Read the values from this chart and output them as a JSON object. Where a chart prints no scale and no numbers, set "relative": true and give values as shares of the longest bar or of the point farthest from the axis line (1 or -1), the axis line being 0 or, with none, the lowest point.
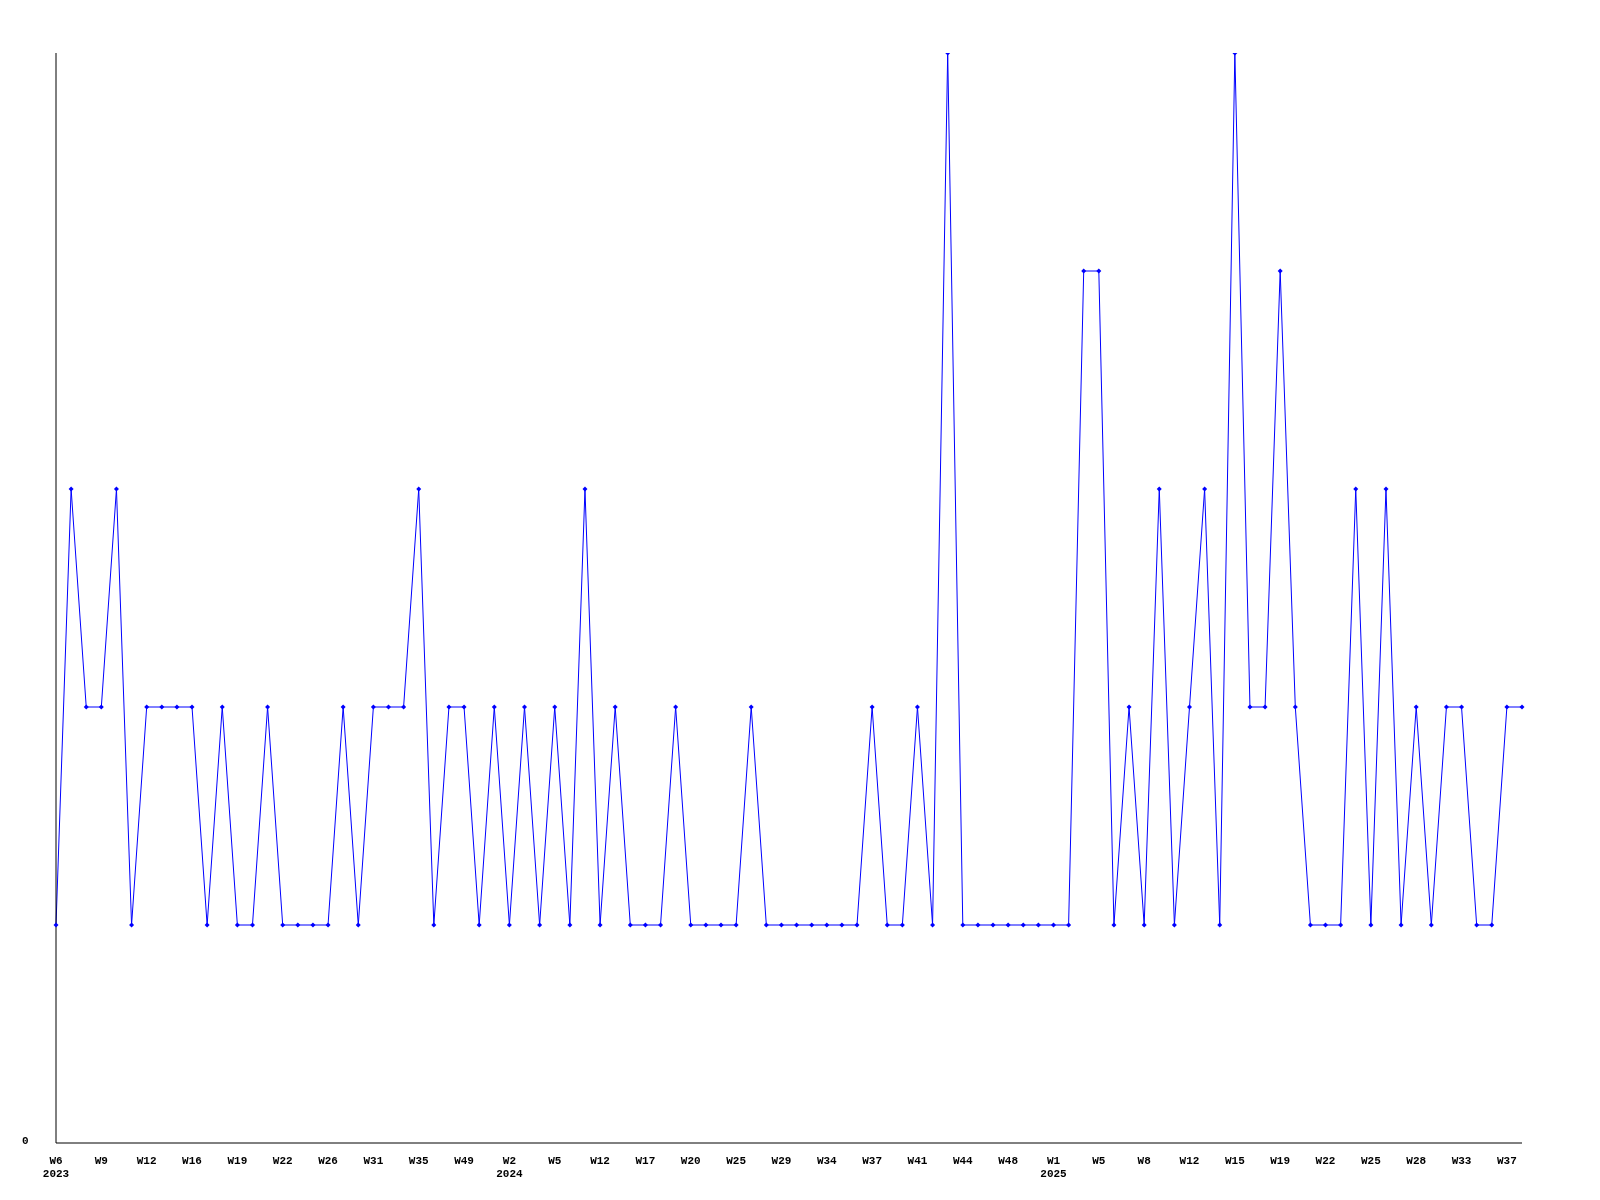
{
  "chart_data": {
    "type": "line",
    "relative": true,
    "color": "#0000ff",
    "marker": "diamond",
    "line_style": "solid",
    "grid": false,
    "annotations": [
      "0"
    ],
    "categories": [
      "W6\n2023",
      null,
      null,
      "W9",
      null,
      null,
      "W12",
      null,
      null,
      "W16",
      null,
      null,
      "W19",
      null,
      null,
      "W22",
      null,
      null,
      "W26",
      null,
      null,
      "W31",
      null,
      null,
      "W35",
      null,
      null,
      "W49",
      null,
      null,
      "W2\n2024",
      null,
      null,
      "W5",
      null,
      null,
      "W12",
      null,
      null,
      "W17",
      null,
      null,
      "W20",
      null,
      null,
      "W25",
      null,
      null,
      "W29",
      null,
      null,
      "W34",
      null,
      null,
      "W37",
      null,
      null,
      "W41",
      null,
      null,
      "W44",
      null,
      null,
      "W48",
      null,
      null,
      "W1\n2025",
      null,
      null,
      "W5",
      null,
      null,
      "W8",
      null,
      null,
      "W12",
      null,
      null,
      "W15",
      null,
      null,
      "W19",
      null,
      null,
      "W22",
      null,
      null,
      "W25",
      null,
      null,
      "W28",
      null,
      null,
      "W33",
      null,
      null,
      "W37",
      null
    ],
    "values": [
      0.2,
      0.6,
      0.4,
      0.4,
      0.6,
      0.2,
      0.4,
      0.4,
      0.4,
      0.4,
      0.2,
      0.4,
      0.2,
      0.2,
      0.4,
      0.2,
      0.2,
      0.2,
      0.2,
      0.4,
      0.2,
      0.4,
      0.4,
      0.4,
      0.6,
      0.2,
      0.4,
      0.4,
      0.2,
      0.4,
      0.2,
      0.4,
      0.2,
      0.4,
      0.2,
      0.6,
      0.2,
      0.4,
      0.2,
      0.2,
      0.2,
      0.4,
      0.2,
      0.2,
      0.2,
      0.2,
      0.4,
      0.2,
      0.2,
      0.2,
      0.2,
      0.2,
      0.2,
      0.2,
      0.4,
      0.2,
      0.2,
      0.4,
      0.2,
      1,
      0.2,
      0.2,
      0.2,
      0.2,
      0.2,
      0.2,
      0.2,
      0.2,
      0.8,
      0.8,
      0.2,
      0.4,
      0.2,
      0.6,
      0.2,
      0.4,
      0.6,
      0.2,
      1,
      0.4,
      0.4,
      0.8,
      0.4,
      0.2,
      0.2,
      0.2,
      0.6,
      0.2,
      0.6,
      0.2,
      0.4,
      0.2,
      0.4,
      0.4,
      0.2,
      0.2,
      0.4,
      0.4
    ]
  }
}
